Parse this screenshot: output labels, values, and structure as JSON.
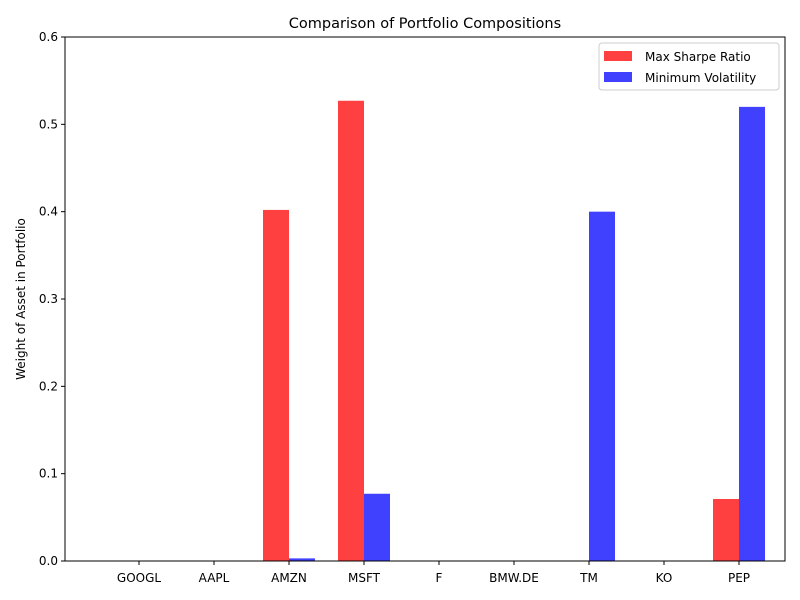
{
  "chart_data": {
    "type": "bar",
    "title": "Comparison of Portfolio Compositions",
    "xlabel": "",
    "ylabel": "Weight of Asset in Portfolio",
    "categories": [
      "GOOGL",
      "AAPL",
      "AMZN",
      "MSFT",
      "F",
      "BMW.DE",
      "TM",
      "KO",
      "PEP"
    ],
    "series": [
      {
        "name": "Max Sharpe Ratio",
        "color": "#ff4040",
        "values": [
          0,
          0,
          0.402,
          0.527,
          0,
          0,
          0,
          0,
          0.071
        ]
      },
      {
        "name": "Minimum Volatility",
        "color": "#4040ff",
        "values": [
          0,
          0,
          0.003,
          0.077,
          0,
          0,
          0.4,
          0,
          0.52
        ]
      }
    ],
    "ylim": [
      0,
      0.6
    ],
    "yticks": [
      0.0,
      0.1,
      0.2,
      0.3,
      0.4,
      0.5,
      0.6
    ],
    "ytick_labels": [
      "0.0",
      "0.1",
      "0.2",
      "0.3",
      "0.4",
      "0.5",
      "0.6"
    ],
    "grid": false,
    "legend_position": "top-right"
  }
}
